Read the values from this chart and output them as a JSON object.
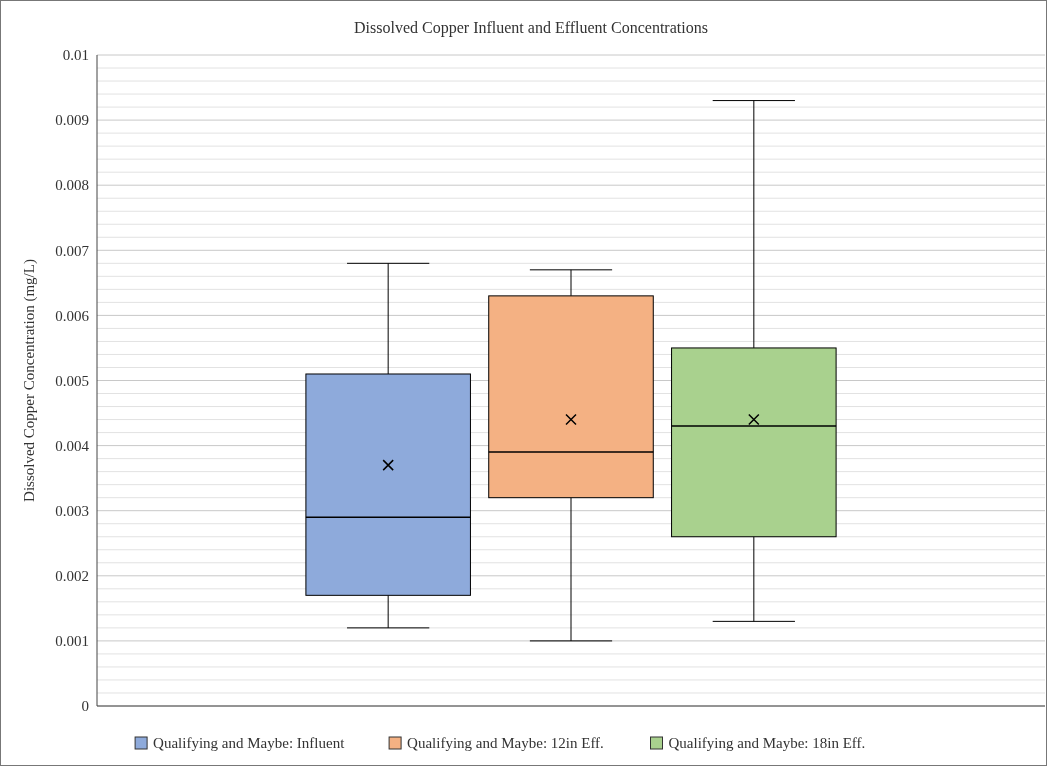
{
  "chart_data": {
    "type": "box",
    "title": "Dissolved Copper Influent and Effluent Concentrations",
    "ylabel": "Dissolved Copper Concentration (mg/L)",
    "categories": [
      null
    ],
    "series": [
      {
        "name": "Qualifying and Maybe: Influent",
        "color": "#8eaadb",
        "boxes": [
          {
            "low": 0.0012,
            "q1": 0.0017,
            "median": 0.0029,
            "q3": 0.0051,
            "high": 0.0068,
            "mean": 0.0037
          }
        ]
      },
      {
        "name": "Qualifying and Maybe: 12in Eff.",
        "color": "#f4b183",
        "boxes": [
          {
            "low": 0.001,
            "q1": 0.0032,
            "median": 0.0039,
            "q3": 0.0063,
            "high": 0.0067,
            "mean": 0.0044
          }
        ]
      },
      {
        "name": "Qualifying and Maybe: 18in Eff.",
        "color": "#a9d18e",
        "boxes": [
          {
            "low": 0.0013,
            "q1": 0.0026,
            "median": 0.0043,
            "q3": 0.0055,
            "high": 0.0093,
            "mean": 0.0044
          }
        ]
      }
    ],
    "ylim": [
      0,
      0.01
    ],
    "yticks": [
      0,
      {
        "value": 0.0002,
        "label": null
      },
      {
        "value": 0.0004,
        "label": null
      },
      {
        "value": 0.0006,
        "label": null
      },
      {
        "value": 0.0008,
        "label": null
      },
      0.001,
      {
        "value": 0.0012,
        "label": null
      },
      {
        "value": 0.0014,
        "label": null
      },
      {
        "value": 0.0016,
        "label": null
      },
      {
        "value": 0.0018,
        "label": null
      },
      0.002,
      {
        "value": 0.0022,
        "label": null
      },
      {
        "value": 0.0024,
        "label": null
      },
      {
        "value": 0.0026,
        "label": null
      },
      {
        "value": 0.0028,
        "label": null
      },
      0.003,
      {
        "value": 0.0032,
        "label": null
      },
      {
        "value": 0.0034,
        "label": null
      },
      {
        "value": 0.0036,
        "label": null
      },
      {
        "value": 0.0038,
        "label": null
      },
      0.004,
      {
        "value": 0.0042,
        "label": null
      },
      {
        "value": 0.0044,
        "label": null
      },
      {
        "value": 0.0046,
        "label": null
      },
      {
        "value": 0.0048,
        "label": null
      },
      0.005,
      {
        "value": 0.0052,
        "label": null
      },
      {
        "value": 0.0054,
        "label": null
      },
      {
        "value": 0.0056,
        "label": null
      },
      {
        "value": 0.0058,
        "label": null
      },
      0.006,
      {
        "value": 0.0062,
        "label": null
      },
      {
        "value": 0.0064,
        "label": null
      },
      {
        "value": 0.0066,
        "label": null
      },
      {
        "value": 0.0068,
        "label": null
      },
      0.007,
      {
        "value": 0.0072,
        "label": null
      },
      {
        "value": 0.0074,
        "label": null
      },
      {
        "value": 0.0076,
        "label": null
      },
      {
        "value": 0.0078,
        "label": null
      },
      0.008,
      {
        "value": 0.0082,
        "label": null
      },
      {
        "value": 0.0084,
        "label": null
      },
      {
        "value": 0.0086,
        "label": null
      },
      {
        "value": 0.0088,
        "label": null
      },
      0.009,
      {
        "value": 0.0092,
        "label": null
      },
      {
        "value": 0.0094,
        "label": null
      },
      {
        "value": 0.0096,
        "label": null
      },
      {
        "value": 0.0098,
        "label": null
      },
      0.01
    ],
    "grid": "y",
    "legend": "bottom",
    "marker": "cross"
  }
}
